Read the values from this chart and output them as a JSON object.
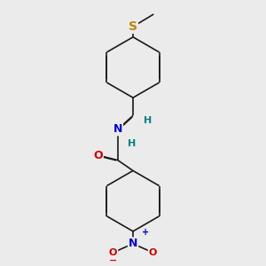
{
  "background_color": "#ebebeb",
  "bond_color": "#1a1a1a",
  "bond_width": 1.2,
  "atom_colors": {
    "S": "#b8860b",
    "N": "#0000cc",
    "O": "#cc0000",
    "H": "#008080",
    "C": "#1a1a1a"
  },
  "fig_width": 3.0,
  "fig_height": 3.0,
  "dpi": 100
}
